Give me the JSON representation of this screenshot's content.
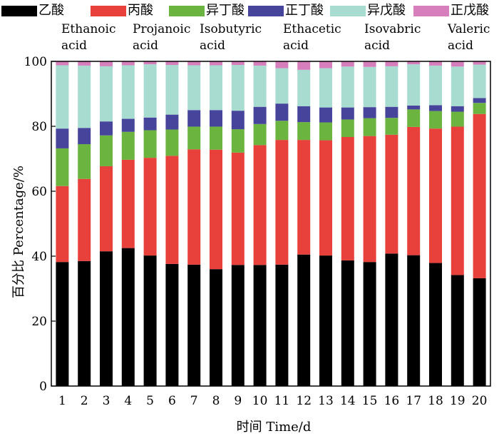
{
  "legend": {
    "zh": [
      "乙酸",
      "丙酸",
      "异丁酸",
      "正丁酸",
      "异戊酸",
      "正戊酸"
    ],
    "en": [
      [
        "Ethanoic",
        "acid"
      ],
      [
        "Projanoic",
        "acid"
      ],
      [
        "Isobutyric",
        "acid"
      ],
      [
        "Ethacetic",
        "acid"
      ],
      [
        "Isovabric",
        "acid"
      ],
      [
        "Valeric",
        "acid"
      ]
    ]
  },
  "chart_data": {
    "type": "bar",
    "stacked": true,
    "xlabel": "时间 Time/d",
    "ylabel": "百分比 Percentage/%",
    "ylim": [
      0,
      100
    ],
    "yticks": [
      0,
      20,
      40,
      60,
      80,
      100
    ],
    "categories": [
      "1",
      "2",
      "3",
      "4",
      "5",
      "6",
      "7",
      "8",
      "9",
      "10",
      "11",
      "12",
      "13",
      "14",
      "15",
      "16",
      "17",
      "18",
      "19",
      "20"
    ],
    "series": [
      {
        "name": "乙酸",
        "color": "#000000",
        "values": [
          38.2,
          38.5,
          41.5,
          42.5,
          40.2,
          37.6,
          37.4,
          36,
          37.3,
          37.3,
          37.4,
          40.5,
          40.2,
          38.7,
          38.2,
          40.8,
          40.3,
          37.9,
          34.2,
          33.2
        ]
      },
      {
        "name": "丙酸",
        "color": "#e8403b",
        "values": [
          23.4,
          25.3,
          26.2,
          27.2,
          30.1,
          33.3,
          35.5,
          36.8,
          34.6,
          36.9,
          38.4,
          35.3,
          35.5,
          38,
          38.8,
          36.6,
          39.5,
          41.4,
          45.7,
          50.6
        ]
      },
      {
        "name": "异丁酸",
        "color": "#6ab43f",
        "values": [
          11.6,
          10.7,
          9.5,
          8.6,
          8.5,
          8.1,
          7,
          7.1,
          7.2,
          6.5,
          5.9,
          5.5,
          5.5,
          5.4,
          5.5,
          5.2,
          5.4,
          5.4,
          4.6,
          3.4
        ]
      },
      {
        "name": "正丁酸",
        "color": "#47449b",
        "values": [
          6.1,
          5,
          4.3,
          4,
          3.9,
          4.6,
          5.1,
          5.1,
          5.7,
          5.3,
          5.3,
          4.9,
          4.6,
          3.7,
          3.4,
          3.4,
          1.2,
          1.8,
          1.7,
          1.5
        ]
      },
      {
        "name": "异戊酸",
        "color": "#a8dcd1",
        "values": [
          19.5,
          19.2,
          17,
          16.5,
          16.4,
          15.3,
          13.8,
          13.8,
          14.1,
          12.7,
          10.9,
          11.2,
          12.1,
          12.6,
          12.4,
          12.5,
          12.7,
          12.2,
          12.2,
          10.3
        ]
      },
      {
        "name": "正戊酸",
        "color": "#d77fbc",
        "values": [
          1.2,
          1.3,
          1.5,
          1.2,
          0.9,
          1.1,
          1.2,
          1.2,
          1.1,
          1.3,
          2.1,
          2.6,
          2.1,
          1.6,
          1.7,
          1.5,
          0.9,
          1.3,
          1.6,
          1
        ]
      }
    ]
  }
}
